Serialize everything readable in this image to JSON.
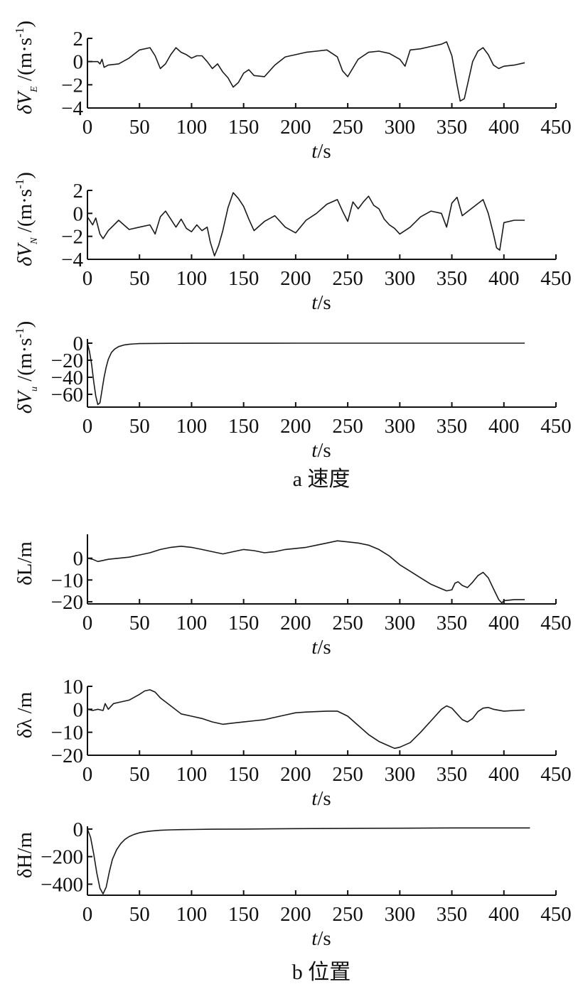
{
  "captions": {
    "velocity": "a 速度",
    "position": "b 位置"
  },
  "chart_data": [
    {
      "type": "line",
      "ylabel": "δV_E /(m·s^-1)",
      "xlabel": "t/s",
      "xlim": [
        0,
        450
      ],
      "ylim": [
        -4,
        2
      ],
      "xticks": [
        0,
        50,
        100,
        150,
        200,
        250,
        300,
        350,
        400,
        450
      ],
      "yticks": [
        2,
        0,
        -2,
        -4
      ],
      "series": [
        {
          "x": [
            0,
            10,
            12,
            14,
            16,
            20,
            30,
            40,
            50,
            60,
            65,
            70,
            75,
            80,
            85,
            90,
            95,
            100,
            105,
            110,
            115,
            120,
            125,
            130,
            135,
            140,
            145,
            150,
            155,
            160,
            170,
            180,
            190,
            200,
            210,
            220,
            230,
            240,
            245,
            250,
            260,
            270,
            280,
            290,
            300,
            305,
            310,
            320,
            330,
            340,
            345,
            350,
            355,
            358,
            362,
            366,
            370,
            375,
            380,
            385,
            390,
            395,
            400,
            410,
            420
          ],
          "y": [
            0,
            0,
            -0.2,
            0.2,
            -0.5,
            -0.3,
            -0.2,
            0.3,
            1.0,
            1.2,
            0.5,
            -0.6,
            -0.2,
            0.6,
            1.2,
            0.8,
            0.6,
            0.3,
            0.5,
            0.5,
            0.0,
            -0.6,
            -0.2,
            -0.9,
            -1.4,
            -2.2,
            -1.8,
            -1.0,
            -0.7,
            -1.2,
            -1.3,
            -0.3,
            0.4,
            0.6,
            0.8,
            0.9,
            1.0,
            0.4,
            -0.8,
            -1.3,
            0.2,
            0.8,
            0.9,
            0.7,
            0.2,
            -0.4,
            1.0,
            1.1,
            1.3,
            1.5,
            1.7,
            0.5,
            -2.0,
            -3.4,
            -3.2,
            -1.6,
            0.0,
            0.9,
            1.2,
            0.6,
            -0.3,
            -0.6,
            -0.4,
            -0.3,
            -0.1
          ]
        }
      ]
    },
    {
      "type": "line",
      "ylabel": "δV_N /(m·s^-1)",
      "xlabel": "t/s",
      "xlim": [
        0,
        450
      ],
      "ylim": [
        -4,
        2
      ],
      "xticks": [
        0,
        50,
        100,
        150,
        200,
        250,
        300,
        350,
        400,
        450
      ],
      "yticks": [
        2,
        0,
        -2,
        -4
      ],
      "series": [
        {
          "x": [
            0,
            5,
            8,
            12,
            15,
            20,
            30,
            40,
            50,
            60,
            65,
            70,
            75,
            80,
            85,
            90,
            95,
            100,
            105,
            110,
            115,
            118,
            122,
            126,
            130,
            135,
            140,
            145,
            150,
            155,
            160,
            170,
            180,
            190,
            200,
            210,
            220,
            230,
            240,
            245,
            250,
            255,
            260,
            265,
            270,
            275,
            280,
            285,
            290,
            295,
            300,
            310,
            320,
            330,
            340,
            345,
            350,
            355,
            360,
            370,
            380,
            385,
            390,
            393,
            396,
            400,
            410,
            420
          ],
          "y": [
            -0.3,
            -1.0,
            -0.4,
            -1.8,
            -2.2,
            -1.5,
            -0.6,
            -1.4,
            -1.2,
            -1.0,
            -1.8,
            -0.3,
            0.2,
            -0.5,
            -1.2,
            -0.5,
            -1.3,
            -1.6,
            -1.0,
            -1.5,
            -1.2,
            -2.5,
            -3.7,
            -2.8,
            -1.5,
            0.5,
            1.8,
            1.3,
            0.6,
            -0.5,
            -1.5,
            -0.7,
            -0.2,
            -1.2,
            -1.7,
            -0.6,
            0.0,
            0.8,
            1.2,
            0.2,
            -0.7,
            1.0,
            0.4,
            1.0,
            1.5,
            0.7,
            0.4,
            -0.5,
            -1.0,
            -1.3,
            -1.8,
            -1.2,
            -0.3,
            0.2,
            0.0,
            -1.2,
            0.9,
            1.4,
            -0.2,
            0.5,
            1.2,
            0.0,
            -1.8,
            -3.0,
            -3.2,
            -0.8,
            -0.6,
            -0.6
          ]
        }
      ]
    },
    {
      "type": "line",
      "ylabel": "δV_u /(m·s^-1)",
      "xlabel": "t/s",
      "xlim": [
        0,
        450
      ],
      "ylim": [
        -75,
        5
      ],
      "xticks": [
        0,
        50,
        100,
        150,
        200,
        250,
        300,
        350,
        400,
        450
      ],
      "yticks": [
        0,
        -20,
        -40,
        -60
      ],
      "series": [
        {
          "x": [
            0,
            2,
            4,
            6,
            8,
            10,
            12,
            14,
            16,
            18,
            20,
            23,
            26,
            30,
            35,
            40,
            45,
            50,
            60,
            80,
            100,
            150,
            200,
            300,
            400,
            420
          ],
          "y": [
            0,
            -10,
            -25,
            -45,
            -62,
            -72,
            -70,
            -55,
            -40,
            -28,
            -19,
            -11,
            -7,
            -4,
            -2.2,
            -1.3,
            -0.8,
            -0.5,
            -0.3,
            -0.15,
            -0.1,
            -0.05,
            0,
            0,
            0,
            0
          ]
        }
      ]
    },
    {
      "type": "line",
      "ylabel": "δL/m",
      "xlabel": "t/s",
      "xlim": [
        0,
        450
      ],
      "ylim": [
        -21,
        11
      ],
      "xticks": [
        0,
        50,
        100,
        150,
        200,
        250,
        300,
        350,
        400,
        450
      ],
      "yticks": [
        0,
        -10,
        -20
      ],
      "series": [
        {
          "x": [
            0,
            5,
            10,
            15,
            20,
            30,
            40,
            50,
            60,
            70,
            80,
            90,
            100,
            110,
            120,
            130,
            140,
            150,
            160,
            170,
            180,
            190,
            200,
            210,
            220,
            230,
            240,
            250,
            260,
            270,
            280,
            290,
            300,
            310,
            320,
            330,
            340,
            345,
            350,
            353,
            356,
            360,
            365,
            370,
            375,
            380,
            385,
            390,
            395,
            398,
            400,
            410,
            420
          ],
          "y": [
            0,
            -0.5,
            -1.5,
            -1.0,
            -0.5,
            0,
            0.5,
            1.5,
            2.5,
            4.0,
            5.0,
            5.5,
            5.0,
            4.0,
            3.0,
            2.0,
            3.0,
            4.0,
            3.5,
            2.5,
            3.0,
            4.0,
            4.5,
            5.0,
            6.0,
            7.0,
            8.0,
            7.5,
            7.0,
            6.0,
            4.0,
            1.0,
            -3.0,
            -6.0,
            -9.0,
            -12.0,
            -14.0,
            -15.0,
            -14.5,
            -11.5,
            -10.8,
            -12.5,
            -13.5,
            -11.0,
            -8.0,
            -6.5,
            -9.0,
            -14.0,
            -19.0,
            -20.5,
            -19.5,
            -19.0,
            -19.0
          ]
        }
      ]
    },
    {
      "type": "line",
      "ylabel": "δλ /m",
      "xlabel": "t/s",
      "xlim": [
        0,
        450
      ],
      "ylim": [
        -20,
        10
      ],
      "xticks": [
        0,
        50,
        100,
        150,
        200,
        250,
        300,
        350,
        400,
        450
      ],
      "yticks": [
        10,
        0,
        -10,
        -20
      ],
      "series": [
        {
          "x": [
            0,
            5,
            10,
            15,
            17,
            20,
            25,
            30,
            40,
            50,
            55,
            60,
            65,
            70,
            80,
            90,
            100,
            110,
            120,
            130,
            140,
            150,
            160,
            170,
            180,
            190,
            200,
            210,
            220,
            230,
            240,
            250,
            260,
            270,
            280,
            290,
            295,
            300,
            310,
            320,
            330,
            340,
            345,
            350,
            355,
            360,
            365,
            370,
            375,
            380,
            385,
            390,
            400,
            410,
            420
          ],
          "y": [
            0,
            -0.5,
            0,
            -0.5,
            2.5,
            0,
            2.5,
            3.0,
            4.0,
            6.5,
            8.0,
            8.5,
            7.5,
            5.0,
            1.5,
            -2.0,
            -3.0,
            -4.0,
            -5.5,
            -6.5,
            -6.0,
            -5.5,
            -5.0,
            -4.5,
            -3.5,
            -2.5,
            -1.5,
            -1.2,
            -1.0,
            -0.8,
            -0.8,
            -3.0,
            -7.0,
            -11.0,
            -14.0,
            -16.0,
            -17.0,
            -16.5,
            -14.5,
            -10.0,
            -5.0,
            0.0,
            1.5,
            0.5,
            -2.0,
            -4.5,
            -5.5,
            -4.0,
            -1.0,
            0.5,
            0.8,
            0.0,
            -0.8,
            -0.5,
            -0.3
          ]
        }
      ]
    },
    {
      "type": "line",
      "ylabel": "δH/m",
      "xlabel": "t/s",
      "xlim": [
        0,
        450
      ],
      "ylim": [
        -480,
        20
      ],
      "xticks": [
        0,
        50,
        100,
        150,
        200,
        250,
        300,
        350,
        400,
        450
      ],
      "yticks": [
        0,
        -200,
        -400
      ],
      "series": [
        {
          "x": [
            0,
            3,
            6,
            9,
            12,
            15,
            18,
            21,
            24,
            28,
            32,
            36,
            40,
            45,
            50,
            55,
            60,
            70,
            80,
            90,
            100,
            120,
            150,
            200,
            250,
            300,
            350,
            400,
            425
          ],
          "y": [
            0,
            -60,
            -180,
            -320,
            -430,
            -470,
            -420,
            -310,
            -220,
            -150,
            -105,
            -75,
            -55,
            -38,
            -27,
            -20,
            -15,
            -9,
            -6,
            -4,
            -3,
            -1,
            0,
            3,
            5,
            6,
            8,
            8,
            8
          ]
        }
      ]
    }
  ]
}
